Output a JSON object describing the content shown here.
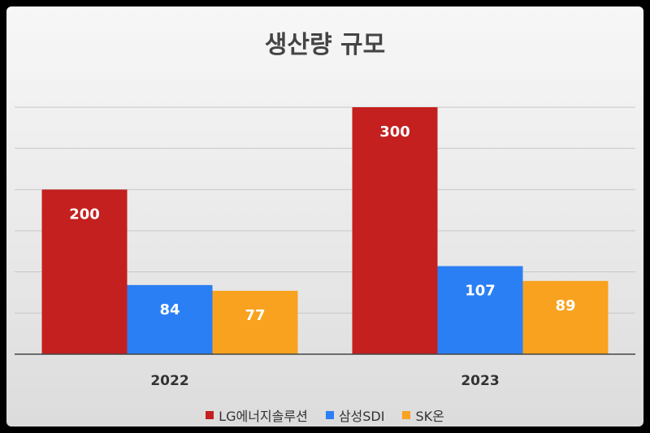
{
  "chart_data": {
    "type": "bar",
    "title": "생산량 규모",
    "categories": [
      "2022",
      "2023"
    ],
    "series": [
      {
        "name": "LG에너지솔루션",
        "values": [
          200,
          300
        ],
        "color": "#c3201f"
      },
      {
        "name": "삼성SDI",
        "values": [
          84,
          107
        ],
        "color": "#2b7ff5"
      },
      {
        "name": "SK온",
        "values": [
          77,
          89
        ],
        "color": "#f8a21f"
      }
    ],
    "xlabel": "",
    "ylabel": "",
    "ylim": [
      0,
      300
    ],
    "grid": true,
    "legend": "bottom"
  }
}
